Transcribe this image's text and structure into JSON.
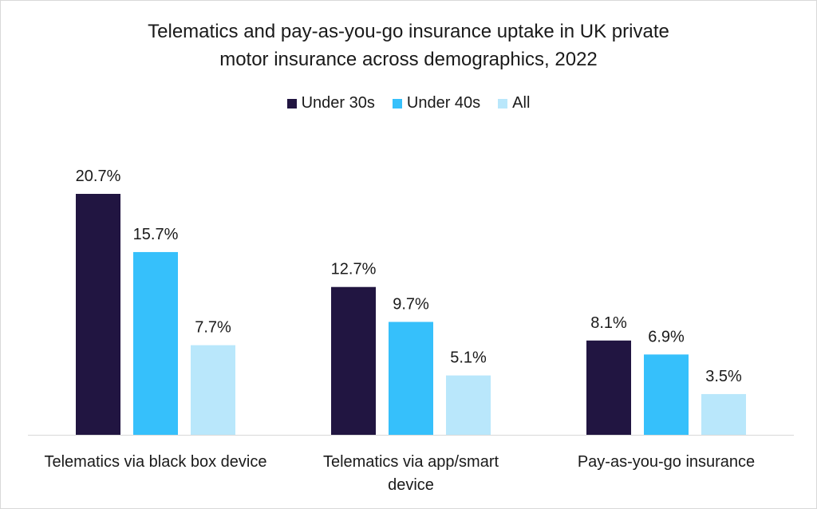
{
  "title_lines": [
    "Telematics and pay-as-you-go insurance uptake in UK private",
    "motor insurance across demographics, 2022"
  ],
  "chart_data": {
    "type": "bar",
    "title": "Telematics and pay-as-you-go insurance uptake in UK private motor insurance across demographics, 2022",
    "categories": [
      [
        "Telematics via black box device"
      ],
      [
        "Telematics via app/smart",
        "device"
      ],
      [
        "Pay-as-you-go insurance"
      ]
    ],
    "series": [
      {
        "name": "Under 30s",
        "color": "#211541",
        "values": [
          20.7,
          12.7,
          8.1
        ],
        "labels": [
          "20.7%",
          "12.7%",
          "8.1%"
        ]
      },
      {
        "name": "Under 40s",
        "color": "#36c0fb",
        "values": [
          15.7,
          9.7,
          6.9
        ],
        "labels": [
          "15.7%",
          "9.7%",
          "6.9%"
        ]
      },
      {
        "name": "All",
        "color": "#b9e7fb",
        "values": [
          7.7,
          5.1,
          3.5
        ],
        "labels": [
          "7.7%",
          "5.1%",
          "3.5%"
        ]
      }
    ],
    "ylim": [
      0,
      20.7
    ],
    "legend_position": "top",
    "grid": false
  }
}
